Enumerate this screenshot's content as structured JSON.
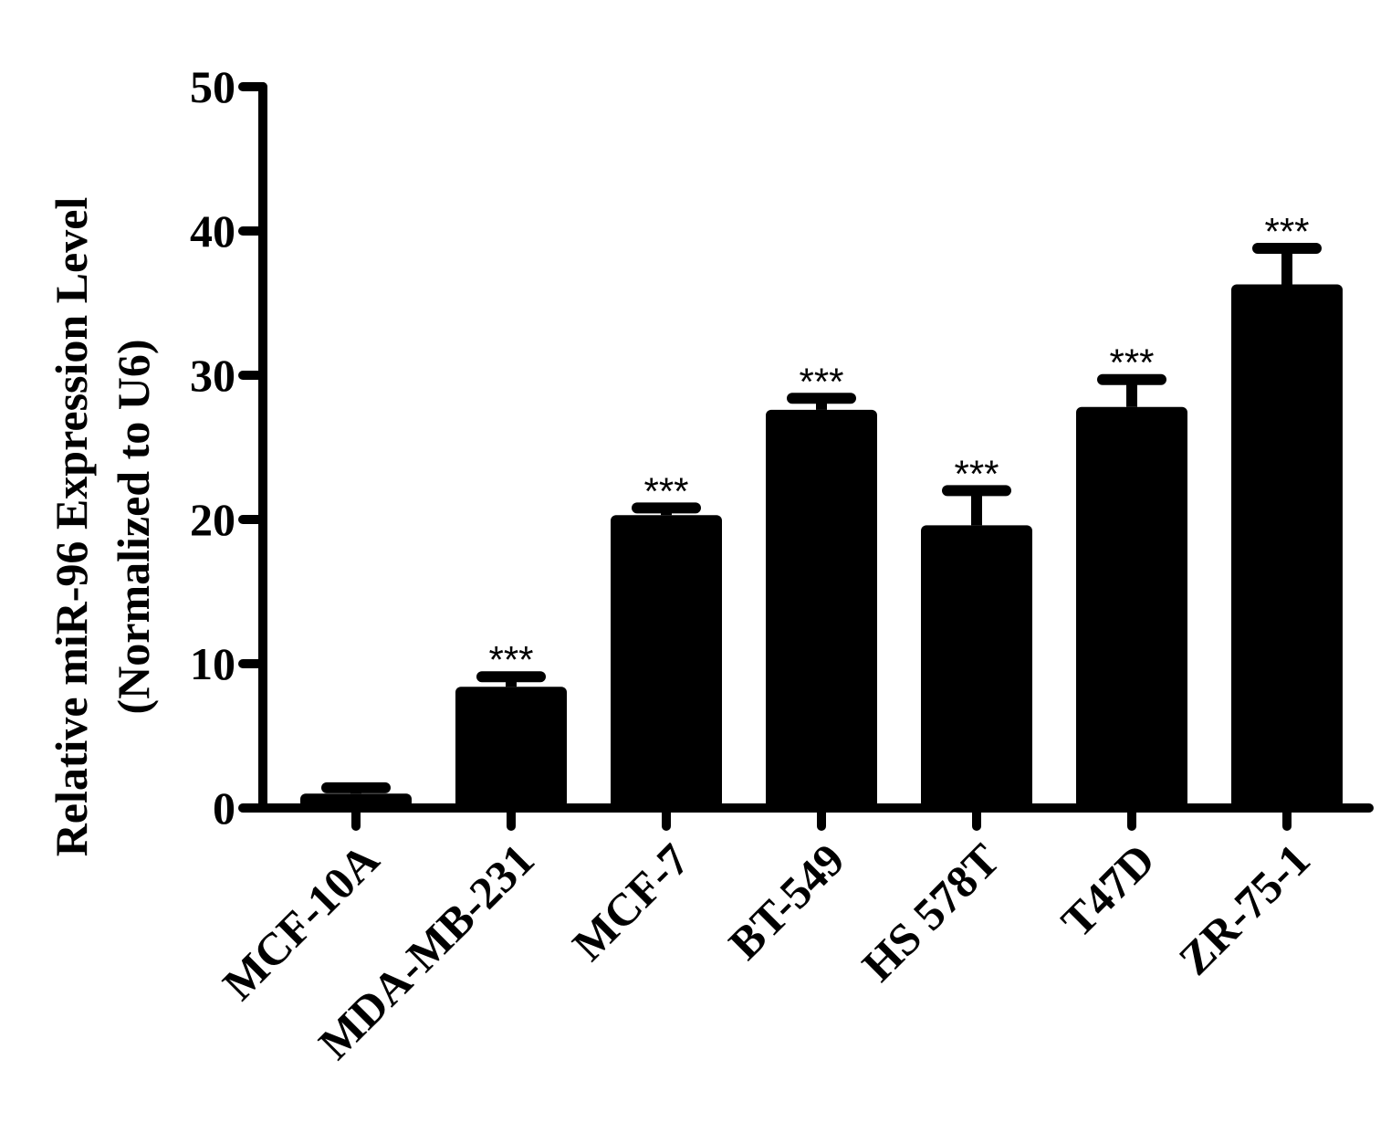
{
  "chart_data": {
    "type": "bar",
    "categories": [
      "MCF-10A",
      "MDA-MB-231",
      "MCF-7",
      "BT-549",
      "HS 578T",
      "T47D",
      "ZR-75-1"
    ],
    "values": [
      1.0,
      8.4,
      20.3,
      27.6,
      19.6,
      27.8,
      36.3
    ],
    "error_upper": [
      0.4,
      0.7,
      0.5,
      0.8,
      2.4,
      1.9,
      2.5
    ],
    "significance": [
      "",
      "***",
      "***",
      "***",
      "***",
      "***",
      "***"
    ],
    "ylabel": "Relative miR-96 Expression Level",
    "ylabel_line2": "(Normalized to U6)",
    "ylim": [
      0,
      50
    ],
    "yticks": [
      "0",
      "10",
      "20",
      "30",
      "40",
      "50"
    ],
    "bar_color": "#000000",
    "grid": false,
    "legend": "none"
  }
}
